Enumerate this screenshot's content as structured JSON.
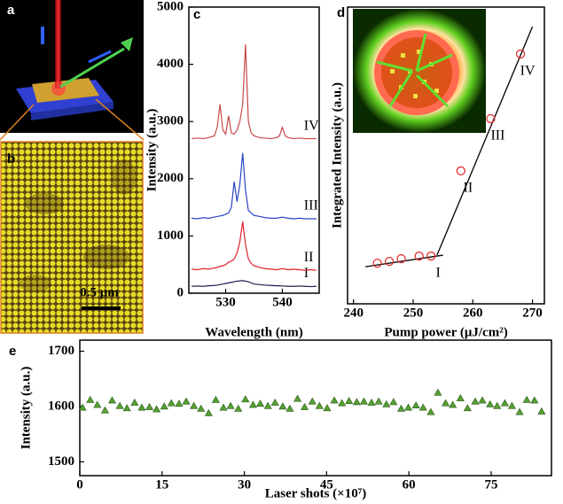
{
  "figure_a": {
    "label": "a"
  },
  "figure_b": {
    "label": "b",
    "scale_bar": "0.5 μm"
  },
  "chart_data": [
    {
      "type": "line",
      "label": "c",
      "xlabel": "Wavelength (nm)",
      "ylabel": "Intensity (a.u.)",
      "x": [
        524,
        525,
        526,
        527,
        528,
        528.5,
        529,
        529.5,
        530,
        530.5,
        531,
        531.5,
        532,
        532.5,
        533,
        533.5,
        534,
        534.5,
        535,
        536,
        537,
        538,
        539,
        539.5,
        540,
        540.5,
        541,
        542,
        543,
        544,
        545,
        546
      ],
      "series": [
        {
          "name": "I",
          "color": "#1c1c50",
          "values": [
            120,
            125,
            120,
            130,
            135,
            140,
            150,
            160,
            170,
            180,
            190,
            200,
            210,
            215,
            220,
            210,
            200,
            180,
            160,
            150,
            140,
            135,
            130,
            130,
            125,
            125,
            120,
            120,
            125,
            120,
            115,
            120
          ]
        },
        {
          "name": "II",
          "color": "#e0202a",
          "values": [
            420,
            410,
            430,
            420,
            440,
            450,
            470,
            480,
            500,
            540,
            560,
            600,
            700,
            900,
            1250,
            850,
            600,
            520,
            480,
            450,
            430,
            420,
            410,
            420,
            430,
            420,
            410,
            420,
            410,
            400,
            410,
            400
          ]
        },
        {
          "name": "III",
          "color": "#2a44c4",
          "values": [
            1310,
            1300,
            1320,
            1310,
            1330,
            1340,
            1350,
            1360,
            1380,
            1400,
            1500,
            1950,
            1600,
            1900,
            2450,
            1800,
            1450,
            1400,
            1360,
            1340,
            1320,
            1310,
            1310,
            1320,
            1330,
            1320,
            1310,
            1300,
            1310,
            1300,
            1300,
            1300
          ]
        },
        {
          "name": "IV",
          "color": "#c84848",
          "values": [
            2700,
            2710,
            2700,
            2720,
            2750,
            2900,
            3300,
            2850,
            2780,
            3100,
            2800,
            2780,
            2850,
            3000,
            3300,
            4350,
            3000,
            2800,
            2750,
            2720,
            2710,
            2700,
            2720,
            2750,
            2900,
            2750,
            2720,
            2700,
            2710,
            2700,
            2700,
            2700
          ]
        }
      ],
      "xlim": [
        523.5,
        546.5
      ],
      "xticks": [
        530,
        540
      ],
      "ylim": [
        0,
        5000
      ],
      "yticks": [
        0,
        1000,
        2000,
        3000,
        4000,
        5000
      ]
    },
    {
      "type": "scatter",
      "label": "d",
      "xlabel": "Pump power (μJ/cm²)",
      "ylabel": "Integrated Intensity (a.u.)",
      "marker": "circle",
      "color": "#e03030",
      "x": [
        244,
        246,
        248,
        251,
        253,
        258,
        263,
        268
      ],
      "values": [
        13.7,
        14.3,
        15.2,
        16.1,
        16.1,
        44.8,
        62.4,
        84.2
      ],
      "point_labels": [
        null,
        null,
        null,
        null,
        "I",
        "II",
        "III",
        "IV"
      ],
      "fit_lines": [
        {
          "x": [
            242,
            255
          ],
          "y": [
            12.5,
            16.4
          ]
        },
        {
          "x": [
            254,
            270
          ],
          "y": [
            16.4,
            93.4
          ]
        }
      ],
      "xlim": [
        239,
        272
      ],
      "xticks": [
        240,
        250,
        260,
        270
      ],
      "ylim": [
        0,
        100
      ]
    },
    {
      "type": "scatter",
      "label": "e",
      "xlabel": "Laser shots (×10⁷)",
      "ylabel": "Intensity (a.u.)",
      "marker": "triangle",
      "color": "#56a032",
      "x": [
        0.5,
        1.9,
        3.2,
        4.6,
        5.9,
        7.3,
        8.6,
        10,
        11.3,
        12.7,
        14,
        15.4,
        16.7,
        18.1,
        19.4,
        20.8,
        22.1,
        23.5,
        24.8,
        26.2,
        27.5,
        28.9,
        30.2,
        31.6,
        32.9,
        34.3,
        35.6,
        37,
        38.3,
        39.7,
        41,
        42.4,
        43.7,
        45.1,
        46.4,
        47.8,
        49.1,
        50.5,
        51.8,
        53.2,
        54.5,
        55.9,
        57.2,
        58.6,
        59.9,
        61.3,
        62.6,
        64,
        65.3,
        66.7,
        68,
        69.4,
        70.7,
        72.1,
        73.4,
        74.8,
        76.1,
        77.5,
        78.8,
        80.2,
        81.5,
        82.9,
        84.2
      ],
      "values": [
        1598,
        1612,
        1603,
        1593,
        1611,
        1601,
        1597,
        1607,
        1598,
        1599,
        1595,
        1600,
        1606,
        1605,
        1609,
        1601,
        1596,
        1588,
        1612,
        1598,
        1601,
        1596,
        1613,
        1603,
        1605,
        1601,
        1607,
        1600,
        1596,
        1614,
        1599,
        1609,
        1601,
        1597,
        1611,
        1606,
        1610,
        1608,
        1609,
        1607,
        1609,
        1604,
        1608,
        1596,
        1598,
        1602,
        1598,
        1590,
        1625,
        1606,
        1603,
        1615,
        1597,
        1609,
        1611,
        1604,
        1601,
        1606,
        1601,
        1590,
        1612,
        1611,
        1591
      ],
      "xlim": [
        0,
        86
      ],
      "xticks": [
        0,
        15,
        30,
        45,
        60,
        75
      ],
      "ylim": [
        1475,
        1720
      ],
      "yticks": [
        1500,
        1600,
        1700
      ]
    }
  ]
}
